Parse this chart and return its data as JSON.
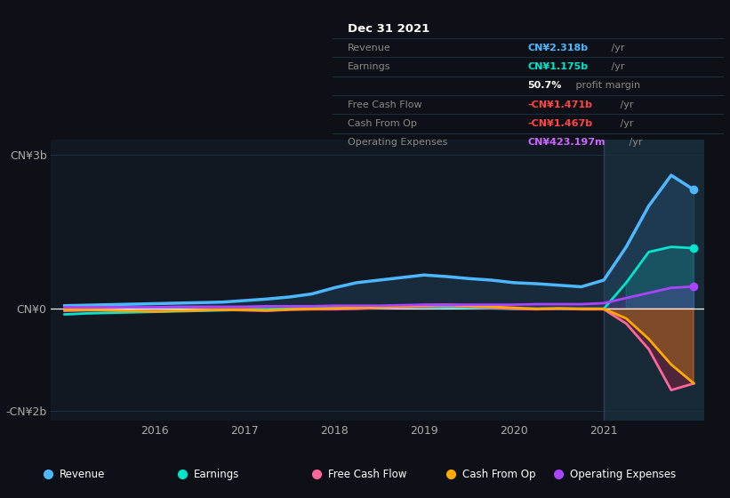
{
  "background_color": "#0d1117",
  "plot_bg_color": "#111822",
  "title": "Dec 31 2021",
  "years": [
    2015.0,
    2015.25,
    2015.5,
    2015.75,
    2016.0,
    2016.25,
    2016.5,
    2016.75,
    2017.0,
    2017.25,
    2017.5,
    2017.75,
    2018.0,
    2018.25,
    2018.5,
    2018.75,
    2019.0,
    2019.25,
    2019.5,
    2019.75,
    2020.0,
    2020.25,
    2020.5,
    2020.75,
    2021.0,
    2021.25,
    2021.5,
    2021.75,
    2022.0
  ],
  "revenue": [
    0.05,
    0.06,
    0.07,
    0.08,
    0.09,
    0.1,
    0.11,
    0.12,
    0.15,
    0.18,
    0.22,
    0.28,
    0.4,
    0.5,
    0.55,
    0.6,
    0.65,
    0.62,
    0.58,
    0.55,
    0.5,
    0.48,
    0.45,
    0.42,
    0.55,
    1.2,
    2.0,
    2.6,
    2.318
  ],
  "earnings": [
    -0.12,
    -0.1,
    -0.09,
    -0.08,
    -0.07,
    -0.06,
    -0.05,
    -0.04,
    -0.03,
    -0.02,
    -0.01,
    0.0,
    0.0,
    0.0,
    0.01,
    0.02,
    0.03,
    0.02,
    0.01,
    0.0,
    -0.01,
    -0.01,
    -0.01,
    -0.01,
    -0.01,
    0.5,
    1.1,
    1.2,
    1.175
  ],
  "free_cash_flow": [
    -0.05,
    -0.04,
    -0.04,
    -0.05,
    -0.06,
    -0.05,
    -0.04,
    -0.03,
    -0.04,
    -0.05,
    -0.03,
    -0.02,
    -0.02,
    -0.01,
    0.01,
    0.02,
    0.04,
    0.05,
    0.03,
    0.01,
    -0.01,
    -0.02,
    -0.01,
    -0.02,
    -0.02,
    -0.3,
    -0.8,
    -1.6,
    -1.471
  ],
  "cash_from_op": [
    -0.03,
    -0.03,
    -0.04,
    -0.05,
    -0.06,
    -0.05,
    -0.04,
    -0.03,
    -0.03,
    -0.04,
    -0.02,
    -0.01,
    0.0,
    0.01,
    0.02,
    0.04,
    0.06,
    0.07,
    0.05,
    0.03,
    0.01,
    -0.01,
    0.0,
    -0.01,
    -0.01,
    -0.2,
    -0.6,
    -1.1,
    -1.467
  ],
  "operating_expenses": [
    0.02,
    0.02,
    0.02,
    0.02,
    0.02,
    0.03,
    0.03,
    0.03,
    0.03,
    0.04,
    0.04,
    0.04,
    0.05,
    0.05,
    0.05,
    0.06,
    0.07,
    0.07,
    0.07,
    0.07,
    0.07,
    0.08,
    0.08,
    0.08,
    0.1,
    0.2,
    0.3,
    0.4,
    0.423
  ],
  "revenue_color": "#4db8ff",
  "earnings_color": "#00e5cc",
  "free_cash_flow_color": "#ff6699",
  "cash_from_op_color": "#ffaa00",
  "operating_expenses_color": "#aa44ff",
  "highlight_start": 2021.0,
  "ylim": [
    -2.2,
    3.3
  ],
  "yticks": [
    -2,
    0,
    3
  ],
  "ytick_labels": [
    "-CN¥2b",
    "CN¥0",
    "CN¥3b"
  ],
  "xlabel_ticks": [
    2016,
    2017,
    2018,
    2019,
    2020,
    2021
  ],
  "legend_items": [
    "Revenue",
    "Earnings",
    "Free Cash Flow",
    "Cash From Op",
    "Operating Expenses"
  ],
  "legend_colors": [
    "#4db8ff",
    "#00e5cc",
    "#ff6699",
    "#ffaa00",
    "#aa44ff"
  ],
  "table_rows": [
    {
      "label": "Revenue",
      "value": "CN¥2.318b",
      "val_color": "#4db8ff",
      "suffix": " /yr",
      "sublabel": ""
    },
    {
      "label": "Earnings",
      "value": "CN¥1.175b",
      "val_color": "#00e5cc",
      "suffix": " /yr",
      "sublabel": ""
    },
    {
      "label": "",
      "value": "50.7%",
      "val_color": "#ffffff",
      "suffix": " profit margin",
      "sublabel": ""
    },
    {
      "label": "Free Cash Flow",
      "value": "-CN¥1.471b",
      "val_color": "#ff4444",
      "suffix": " /yr",
      "sublabel": ""
    },
    {
      "label": "Cash From Op",
      "value": "-CN¥1.467b",
      "val_color": "#ff4444",
      "suffix": " /yr",
      "sublabel": ""
    },
    {
      "label": "Operating Expenses",
      "value": "CN¥423.197m",
      "val_color": "#cc66ff",
      "suffix": " /yr",
      "sublabel": ""
    }
  ]
}
